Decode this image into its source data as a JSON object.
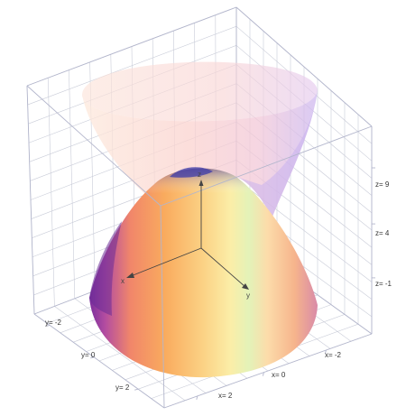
{
  "plot": {
    "z_axis": {
      "name": "z",
      "tick_labels": [
        "z= 9",
        "z= 4",
        "z= -1"
      ]
    },
    "y_axis": {
      "name": "y",
      "tick_labels": [
        "y= -2",
        "y= 0",
        "y= 2"
      ]
    },
    "x_axis": {
      "name": "x",
      "tick_labels": [
        "x= -2",
        "x= 0",
        "x= 2"
      ]
    }
  },
  "colors": {
    "box": "#b3b6cc",
    "grid": "#c9ccd8",
    "upper_surface_light": "#fde7d6",
    "upper_surface_pink": "#f7c6c8",
    "upper_surface_violet": "#c9b3ee",
    "lower_surface_violet": "#7c3ca8",
    "lower_surface_orange": "#f9a85c",
    "lower_surface_yellow": "#fbeaa2",
    "lower_surface_green": "#e4f2b8",
    "lower_surface_blue": "#4a4ab8"
  }
}
